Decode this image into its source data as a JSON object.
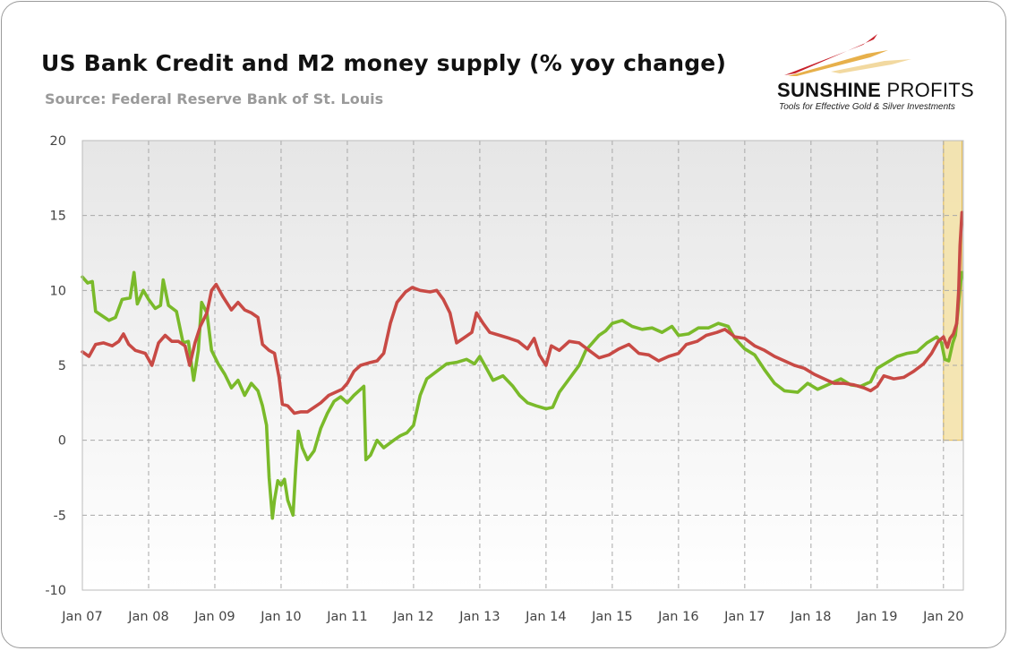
{
  "title": "US Bank Credit and M2 money supply (% yoy change)",
  "subtitle": "Source: Federal Reserve Bank of St. Louis",
  "logo": {
    "name_bold": "SUNSHINE",
    "name_light": "PROFITS",
    "tagline": "Tools for Effective Gold & Silver Investments",
    "colors": {
      "red": "#c8232c",
      "gold": "#e7b04a"
    }
  },
  "chart_data": {
    "type": "line",
    "title": "US Bank Credit and M2 money supply (% yoy change)",
    "xlabel": "",
    "ylabel": "",
    "ylim": [
      -10,
      20
    ],
    "xlim": [
      2007.0,
      2020.3
    ],
    "yticks": [
      -10,
      -5,
      0,
      5,
      10,
      15,
      20
    ],
    "yticklabels": [
      "-10",
      "-5",
      "0",
      "5",
      "10",
      "15",
      "20"
    ],
    "xticks": [
      2007,
      2008,
      2009,
      2010,
      2011,
      2012,
      2013,
      2014,
      2015,
      2016,
      2017,
      2018,
      2019,
      2020
    ],
    "xticklabels": [
      "Jan 07",
      "Jan 08",
      "Jan 09",
      "Jan 10",
      "Jan 11",
      "Jan 12",
      "Jan 13",
      "Jan 14",
      "Jan 15",
      "Jan 16",
      "Jan 17",
      "Jan 18",
      "Jan 19",
      "Jan 20"
    ],
    "grid": true,
    "legend": "none",
    "highlight": {
      "x_from": 2020.0,
      "x_to": 2020.28,
      "y_from": 0,
      "y_to": 20,
      "color": "#f5e3a8",
      "border": "#e0b23a"
    },
    "series": [
      {
        "color": "#7aba2a",
        "points": [
          [
            2007.0,
            10.9
          ],
          [
            2007.08,
            10.5
          ],
          [
            2007.15,
            10.6
          ],
          [
            2007.2,
            8.6
          ],
          [
            2007.3,
            8.3
          ],
          [
            2007.4,
            8.0
          ],
          [
            2007.5,
            8.2
          ],
          [
            2007.6,
            9.4
          ],
          [
            2007.72,
            9.5
          ],
          [
            2007.78,
            11.2
          ],
          [
            2007.83,
            9.1
          ],
          [
            2007.92,
            10.0
          ],
          [
            2008.0,
            9.4
          ],
          [
            2008.1,
            8.8
          ],
          [
            2008.18,
            9.0
          ],
          [
            2008.22,
            10.7
          ],
          [
            2008.3,
            9.0
          ],
          [
            2008.42,
            8.6
          ],
          [
            2008.52,
            6.5
          ],
          [
            2008.6,
            6.6
          ],
          [
            2008.68,
            4.0
          ],
          [
            2008.75,
            6.0
          ],
          [
            2008.8,
            9.2
          ],
          [
            2008.88,
            8.5
          ],
          [
            2008.95,
            6.0
          ],
          [
            2009.05,
            5.1
          ],
          [
            2009.15,
            4.4
          ],
          [
            2009.25,
            3.5
          ],
          [
            2009.35,
            4.0
          ],
          [
            2009.45,
            3.0
          ],
          [
            2009.55,
            3.8
          ],
          [
            2009.65,
            3.3
          ],
          [
            2009.72,
            2.3
          ],
          [
            2009.78,
            1.0
          ],
          [
            2009.82,
            -2.5
          ],
          [
            2009.87,
            -5.2
          ],
          [
            2009.9,
            -4.0
          ],
          [
            2009.95,
            -2.7
          ],
          [
            2010.0,
            -3.0
          ],
          [
            2010.05,
            -2.6
          ],
          [
            2010.1,
            -4.0
          ],
          [
            2010.18,
            -5.0
          ],
          [
            2010.22,
            -2.0
          ],
          [
            2010.26,
            0.6
          ],
          [
            2010.32,
            -0.5
          ],
          [
            2010.4,
            -1.3
          ],
          [
            2010.5,
            -0.7
          ],
          [
            2010.6,
            0.8
          ],
          [
            2010.7,
            1.8
          ],
          [
            2010.8,
            2.6
          ],
          [
            2010.9,
            2.9
          ],
          [
            2011.0,
            2.5
          ],
          [
            2011.1,
            3.0
          ],
          [
            2011.2,
            3.4
          ],
          [
            2011.25,
            3.6
          ],
          [
            2011.28,
            -1.3
          ],
          [
            2011.35,
            -1.0
          ],
          [
            2011.45,
            0.0
          ],
          [
            2011.55,
            -0.5
          ],
          [
            2011.7,
            0.0
          ],
          [
            2011.8,
            0.3
          ],
          [
            2011.9,
            0.5
          ],
          [
            2012.0,
            1.0
          ],
          [
            2012.1,
            3.0
          ],
          [
            2012.2,
            4.1
          ],
          [
            2012.35,
            4.6
          ],
          [
            2012.5,
            5.1
          ],
          [
            2012.65,
            5.2
          ],
          [
            2012.8,
            5.4
          ],
          [
            2012.92,
            5.1
          ],
          [
            2013.0,
            5.6
          ],
          [
            2013.1,
            4.8
          ],
          [
            2013.2,
            4.0
          ],
          [
            2013.35,
            4.3
          ],
          [
            2013.5,
            3.6
          ],
          [
            2013.6,
            3.0
          ],
          [
            2013.72,
            2.5
          ],
          [
            2013.85,
            2.3
          ],
          [
            2014.0,
            2.1
          ],
          [
            2014.1,
            2.2
          ],
          [
            2014.2,
            3.2
          ],
          [
            2014.3,
            3.8
          ],
          [
            2014.4,
            4.4
          ],
          [
            2014.5,
            5.0
          ],
          [
            2014.6,
            6.0
          ],
          [
            2014.7,
            6.5
          ],
          [
            2014.8,
            7.0
          ],
          [
            2014.9,
            7.3
          ],
          [
            2015.0,
            7.8
          ],
          [
            2015.15,
            8.0
          ],
          [
            2015.3,
            7.6
          ],
          [
            2015.45,
            7.4
          ],
          [
            2015.6,
            7.5
          ],
          [
            2015.75,
            7.2
          ],
          [
            2015.9,
            7.6
          ],
          [
            2016.0,
            7.0
          ],
          [
            2016.15,
            7.1
          ],
          [
            2016.3,
            7.5
          ],
          [
            2016.45,
            7.5
          ],
          [
            2016.6,
            7.8
          ],
          [
            2016.75,
            7.6
          ],
          [
            2016.85,
            6.8
          ],
          [
            2017.0,
            6.1
          ],
          [
            2017.15,
            5.7
          ],
          [
            2017.3,
            4.7
          ],
          [
            2017.45,
            3.8
          ],
          [
            2017.6,
            3.3
          ],
          [
            2017.8,
            3.2
          ],
          [
            2017.95,
            3.8
          ],
          [
            2018.1,
            3.4
          ],
          [
            2018.25,
            3.7
          ],
          [
            2018.45,
            4.1
          ],
          [
            2018.6,
            3.7
          ],
          [
            2018.75,
            3.6
          ],
          [
            2018.9,
            3.9
          ],
          [
            2019.0,
            4.8
          ],
          [
            2019.15,
            5.2
          ],
          [
            2019.3,
            5.6
          ],
          [
            2019.45,
            5.8
          ],
          [
            2019.6,
            5.9
          ],
          [
            2019.75,
            6.5
          ],
          [
            2019.9,
            6.9
          ],
          [
            2019.97,
            6.5
          ],
          [
            2020.02,
            5.4
          ],
          [
            2020.08,
            5.3
          ],
          [
            2020.14,
            6.5
          ],
          [
            2020.18,
            7.0
          ],
          [
            2020.22,
            8.7
          ],
          [
            2020.25,
            10.2
          ],
          [
            2020.28,
            11.2
          ]
        ]
      },
      {
        "color": "#c84a45",
        "points": [
          [
            2007.0,
            5.9
          ],
          [
            2007.1,
            5.6
          ],
          [
            2007.2,
            6.4
          ],
          [
            2007.32,
            6.5
          ],
          [
            2007.45,
            6.3
          ],
          [
            2007.55,
            6.6
          ],
          [
            2007.62,
            7.1
          ],
          [
            2007.7,
            6.4
          ],
          [
            2007.8,
            6.0
          ],
          [
            2007.95,
            5.8
          ],
          [
            2008.05,
            5.0
          ],
          [
            2008.15,
            6.5
          ],
          [
            2008.25,
            7.0
          ],
          [
            2008.35,
            6.6
          ],
          [
            2008.45,
            6.6
          ],
          [
            2008.55,
            6.3
          ],
          [
            2008.62,
            5.0
          ],
          [
            2008.7,
            6.5
          ],
          [
            2008.78,
            7.6
          ],
          [
            2008.88,
            8.5
          ],
          [
            2008.95,
            10.0
          ],
          [
            2009.02,
            10.4
          ],
          [
            2009.12,
            9.6
          ],
          [
            2009.25,
            8.7
          ],
          [
            2009.35,
            9.2
          ],
          [
            2009.45,
            8.7
          ],
          [
            2009.55,
            8.5
          ],
          [
            2009.65,
            8.2
          ],
          [
            2009.72,
            6.4
          ],
          [
            2009.82,
            6.0
          ],
          [
            2009.9,
            5.8
          ],
          [
            2009.97,
            4.2
          ],
          [
            2010.02,
            2.4
          ],
          [
            2010.1,
            2.3
          ],
          [
            2010.2,
            1.8
          ],
          [
            2010.3,
            1.9
          ],
          [
            2010.4,
            1.9
          ],
          [
            2010.5,
            2.2
          ],
          [
            2010.6,
            2.5
          ],
          [
            2010.72,
            3.0
          ],
          [
            2010.82,
            3.2
          ],
          [
            2010.92,
            3.4
          ],
          [
            2011.0,
            3.8
          ],
          [
            2011.1,
            4.6
          ],
          [
            2011.2,
            5.0
          ],
          [
            2011.35,
            5.2
          ],
          [
            2011.45,
            5.3
          ],
          [
            2011.55,
            5.8
          ],
          [
            2011.65,
            7.8
          ],
          [
            2011.75,
            9.2
          ],
          [
            2011.88,
            9.9
          ],
          [
            2011.98,
            10.2
          ],
          [
            2012.1,
            10.0
          ],
          [
            2012.25,
            9.9
          ],
          [
            2012.35,
            10.0
          ],
          [
            2012.45,
            9.4
          ],
          [
            2012.55,
            8.5
          ],
          [
            2012.65,
            6.5
          ],
          [
            2012.75,
            6.8
          ],
          [
            2012.88,
            7.2
          ],
          [
            2012.95,
            8.5
          ],
          [
            2013.05,
            7.8
          ],
          [
            2013.15,
            7.2
          ],
          [
            2013.3,
            7.0
          ],
          [
            2013.45,
            6.8
          ],
          [
            2013.58,
            6.6
          ],
          [
            2013.72,
            6.1
          ],
          [
            2013.82,
            6.8
          ],
          [
            2013.9,
            5.7
          ],
          [
            2014.0,
            5.0
          ],
          [
            2014.08,
            6.3
          ],
          [
            2014.2,
            6.0
          ],
          [
            2014.35,
            6.6
          ],
          [
            2014.5,
            6.5
          ],
          [
            2014.65,
            6.0
          ],
          [
            2014.8,
            5.5
          ],
          [
            2014.95,
            5.7
          ],
          [
            2015.1,
            6.1
          ],
          [
            2015.25,
            6.4
          ],
          [
            2015.4,
            5.8
          ],
          [
            2015.55,
            5.7
          ],
          [
            2015.7,
            5.3
          ],
          [
            2015.85,
            5.6
          ],
          [
            2016.0,
            5.8
          ],
          [
            2016.12,
            6.4
          ],
          [
            2016.28,
            6.6
          ],
          [
            2016.42,
            7.0
          ],
          [
            2016.58,
            7.2
          ],
          [
            2016.7,
            7.4
          ],
          [
            2016.85,
            6.9
          ],
          [
            2017.0,
            6.8
          ],
          [
            2017.15,
            6.3
          ],
          [
            2017.3,
            6.0
          ],
          [
            2017.45,
            5.6
          ],
          [
            2017.6,
            5.3
          ],
          [
            2017.75,
            5.0
          ],
          [
            2017.9,
            4.8
          ],
          [
            2018.05,
            4.4
          ],
          [
            2018.2,
            4.1
          ],
          [
            2018.35,
            3.8
          ],
          [
            2018.5,
            3.8
          ],
          [
            2018.65,
            3.7
          ],
          [
            2018.8,
            3.5
          ],
          [
            2018.9,
            3.3
          ],
          [
            2019.0,
            3.6
          ],
          [
            2019.1,
            4.3
          ],
          [
            2019.25,
            4.1
          ],
          [
            2019.4,
            4.2
          ],
          [
            2019.55,
            4.6
          ],
          [
            2019.7,
            5.1
          ],
          [
            2019.82,
            5.8
          ],
          [
            2019.92,
            6.6
          ],
          [
            2020.0,
            6.9
          ],
          [
            2020.06,
            6.2
          ],
          [
            2020.1,
            6.8
          ],
          [
            2020.15,
            7.1
          ],
          [
            2020.2,
            7.8
          ],
          [
            2020.23,
            10.0
          ],
          [
            2020.25,
            13.0
          ],
          [
            2020.28,
            15.2
          ]
        ]
      }
    ]
  }
}
